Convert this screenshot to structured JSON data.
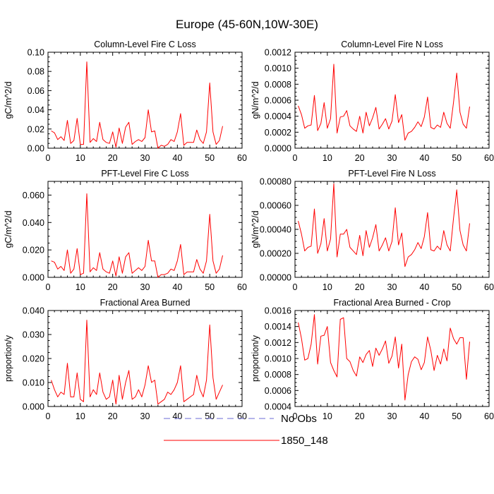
{
  "figure_title": "Europe (45-60N,10W-30E)",
  "colors": {
    "model": "#ff0000",
    "obs": "#6b6bd6",
    "axis": "#000000"
  },
  "legend": {
    "obs_label": "No Obs",
    "model_label": "1850_148"
  },
  "chart_data": [
    {
      "type": "line",
      "title": "Column-Level Fire C Loss",
      "ylabel": "gC/m^2/d",
      "xlim": [
        0,
        60
      ],
      "ylim": [
        0,
        0.1
      ],
      "x_ticks": [
        "0",
        "10",
        "20",
        "30",
        "40",
        "50",
        "60"
      ],
      "y_ticks": [
        "0.00",
        "0.02",
        "0.04",
        "0.06",
        "0.08",
        "0.10"
      ],
      "series": [
        {
          "values": [
            0.018,
            0.016,
            0.009,
            0.012,
            0.008,
            0.029,
            0.005,
            0.008,
            0.031,
            0.004,
            0.004,
            0.09,
            0.006,
            0.01,
            0.007,
            0.027,
            0.009,
            0.006,
            0.005,
            0.017,
            0.001,
            0.021,
            0.005,
            0.022,
            0.027,
            0.004,
            0.007,
            0.009,
            0.007,
            0.011,
            0.04,
            0.017,
            0.018,
            0.0,
            0.003,
            0.002,
            0.004,
            0.009,
            0.007,
            0.017,
            0.036,
            0.003,
            0.006,
            0.006,
            0.006,
            0.019,
            0.009,
            0.005,
            0.017,
            0.068,
            0.017,
            0.004,
            0.008,
            0.023
          ]
        }
      ]
    },
    {
      "type": "line",
      "title": "Column-Level Fire N Loss",
      "ylabel": "gN/m^2/d",
      "xlim": [
        0,
        60
      ],
      "ylim": [
        0,
        0.0012
      ],
      "x_ticks": [
        "0",
        "10",
        "20",
        "30",
        "40",
        "50",
        "60"
      ],
      "y_ticks": [
        "0.0000",
        "0.0002",
        "0.0004",
        "0.0006",
        "0.0008",
        "0.0010",
        "0.0012"
      ],
      "series": [
        {
          "values": [
            0.00053,
            0.00042,
            0.00025,
            0.00028,
            0.00029,
            0.00066,
            0.00022,
            0.00031,
            0.00057,
            0.00025,
            0.00037,
            0.00105,
            0.00019,
            0.00039,
            0.0004,
            0.00047,
            0.00028,
            0.00024,
            0.00021,
            0.0004,
            0.00019,
            0.00045,
            0.00028,
            0.00038,
            0.00051,
            0.00024,
            0.0003,
            0.00037,
            0.00024,
            0.00034,
            0.00067,
            0.00032,
            0.00042,
            0.0001,
            0.00019,
            0.00021,
            0.00026,
            0.00033,
            0.00027,
            0.00039,
            0.00064,
            0.00026,
            0.00024,
            0.00029,
            0.00026,
            0.00045,
            0.00031,
            0.00025,
            0.00057,
            0.00094,
            0.00045,
            0.0003,
            0.00025,
            0.00052
          ]
        }
      ]
    },
    {
      "type": "line",
      "title": "PFT-Level Fire C Loss",
      "ylabel": "gC/m^2/d",
      "xlim": [
        0,
        60
      ],
      "ylim": [
        0,
        0.07
      ],
      "x_ticks": [
        "0",
        "10",
        "20",
        "30",
        "40",
        "50",
        "60"
      ],
      "y_ticks": [
        "0.000",
        "0.020",
        "0.040",
        "0.060"
      ],
      "series": [
        {
          "values": [
            0.012,
            0.011,
            0.006,
            0.008,
            0.005,
            0.02,
            0.003,
            0.006,
            0.021,
            0.002,
            0.003,
            0.061,
            0.004,
            0.007,
            0.005,
            0.018,
            0.006,
            0.004,
            0.003,
            0.012,
            0.001,
            0.015,
            0.003,
            0.015,
            0.018,
            0.003,
            0.005,
            0.007,
            0.005,
            0.008,
            0.027,
            0.012,
            0.012,
            0.0,
            0.002,
            0.002,
            0.003,
            0.006,
            0.005,
            0.012,
            0.024,
            0.002,
            0.004,
            0.004,
            0.004,
            0.013,
            0.006,
            0.003,
            0.012,
            0.046,
            0.012,
            0.003,
            0.006,
            0.016
          ]
        }
      ]
    },
    {
      "type": "line",
      "title": "PFT-Level Fire N Loss",
      "ylabel": "gN/m^2/d",
      "xlim": [
        0,
        60
      ],
      "ylim": [
        0,
        0.0008
      ],
      "x_ticks": [
        "0",
        "10",
        "20",
        "30",
        "40",
        "50",
        "60"
      ],
      "y_ticks": [
        "0.00000",
        "0.00020",
        "0.00040",
        "0.00060",
        "0.00080"
      ],
      "series": [
        {
          "values": [
            0.00047,
            0.00036,
            0.00022,
            0.00025,
            0.00026,
            0.00057,
            0.0002,
            0.00028,
            0.00049,
            0.00022,
            0.00032,
            0.00078,
            0.00017,
            0.00036,
            0.00036,
            0.0004,
            0.00025,
            0.00022,
            0.00019,
            0.00035,
            0.00018,
            0.00039,
            0.00025,
            0.00033,
            0.00044,
            0.00022,
            0.00027,
            0.00033,
            0.00022,
            0.0003,
            0.00058,
            0.00027,
            0.00037,
            9e-05,
            0.00017,
            0.00019,
            0.00023,
            0.00029,
            0.00024,
            0.00034,
            0.00054,
            0.00023,
            0.00022,
            0.00026,
            0.00023,
            0.00039,
            0.00027,
            0.00022,
            0.00049,
            0.00073,
            0.00039,
            0.00027,
            0.00022,
            0.00045
          ]
        }
      ]
    },
    {
      "type": "line",
      "title": "Fractional Area Burned",
      "ylabel": "proportion/y",
      "xlim": [
        0,
        60
      ],
      "ylim": [
        0,
        0.04
      ],
      "x_ticks": [
        "0",
        "10",
        "20",
        "30",
        "40",
        "50",
        "60"
      ],
      "y_ticks": [
        "0.000",
        "0.010",
        "0.020",
        "0.030",
        "0.040"
      ],
      "series": [
        {
          "values": [
            0.011,
            0.007,
            0.004,
            0.006,
            0.005,
            0.018,
            0.004,
            0.004,
            0.014,
            0.003,
            0.002,
            0.036,
            0.004,
            0.007,
            0.005,
            0.014,
            0.006,
            0.003,
            0.004,
            0.011,
            0.001,
            0.013,
            0.003,
            0.01,
            0.015,
            0.003,
            0.004,
            0.007,
            0.004,
            0.009,
            0.017,
            0.01,
            0.011,
            0.001,
            0.002,
            0.003,
            0.006,
            0.005,
            0.007,
            0.01,
            0.017,
            0.002,
            0.003,
            0.004,
            0.005,
            0.013,
            0.007,
            0.004,
            0.011,
            0.034,
            0.012,
            0.003,
            0.006,
            0.009
          ]
        }
      ]
    },
    {
      "type": "line",
      "title": "Fractional Area Burned - Crop",
      "ylabel": "proportion/y",
      "xlim": [
        0,
        60
      ],
      "ylim": [
        0.0004,
        0.0016
      ],
      "x_ticks": [
        "0",
        "10",
        "20",
        "30",
        "40",
        "50",
        "60"
      ],
      "y_ticks": [
        "0.0004",
        "0.0006",
        "0.0008",
        "0.0010",
        "0.0012",
        "0.0014",
        "0.0016"
      ],
      "series": [
        {
          "values": [
            0.00145,
            0.00125,
            0.00098,
            0.001,
            0.00118,
            0.00155,
            0.00093,
            0.00128,
            0.00129,
            0.0014,
            0.00095,
            0.00085,
            0.00077,
            0.00149,
            0.00151,
            0.001,
            0.00096,
            0.00085,
            0.00078,
            0.00102,
            0.00095,
            0.00105,
            0.0011,
            0.0009,
            0.00113,
            0.00104,
            0.00112,
            0.00122,
            0.00094,
            0.00103,
            0.00127,
            0.00088,
            0.00118,
            0.00048,
            0.0008,
            0.00096,
            0.00102,
            0.00099,
            0.00086,
            0.00095,
            0.00127,
            0.0011,
            0.00085,
            0.00104,
            0.00093,
            0.00112,
            0.00097,
            0.00138,
            0.00125,
            0.00118,
            0.00126,
            0.00126,
            0.00074,
            0.00121
          ]
        }
      ]
    }
  ]
}
